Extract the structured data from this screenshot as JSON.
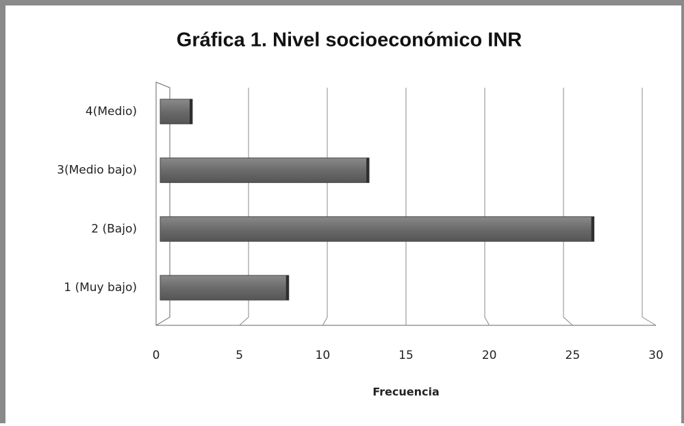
{
  "chart_data": {
    "type": "bar",
    "orientation": "horizontal",
    "title": "Gráfica 1. Nivel socioeconómico INR",
    "x_label": "Frecuencia",
    "categories": [
      "1 (Muy bajo)",
      "2 (Bajo)",
      "3(Medio bajo)",
      "4(Medio)"
    ],
    "values": [
      8,
      27,
      13,
      2
    ],
    "color": "#6b6b6b",
    "xlim": [
      0,
      30
    ],
    "xticks": [
      0,
      5,
      10,
      15,
      20,
      25,
      30
    ],
    "grid": true
  }
}
